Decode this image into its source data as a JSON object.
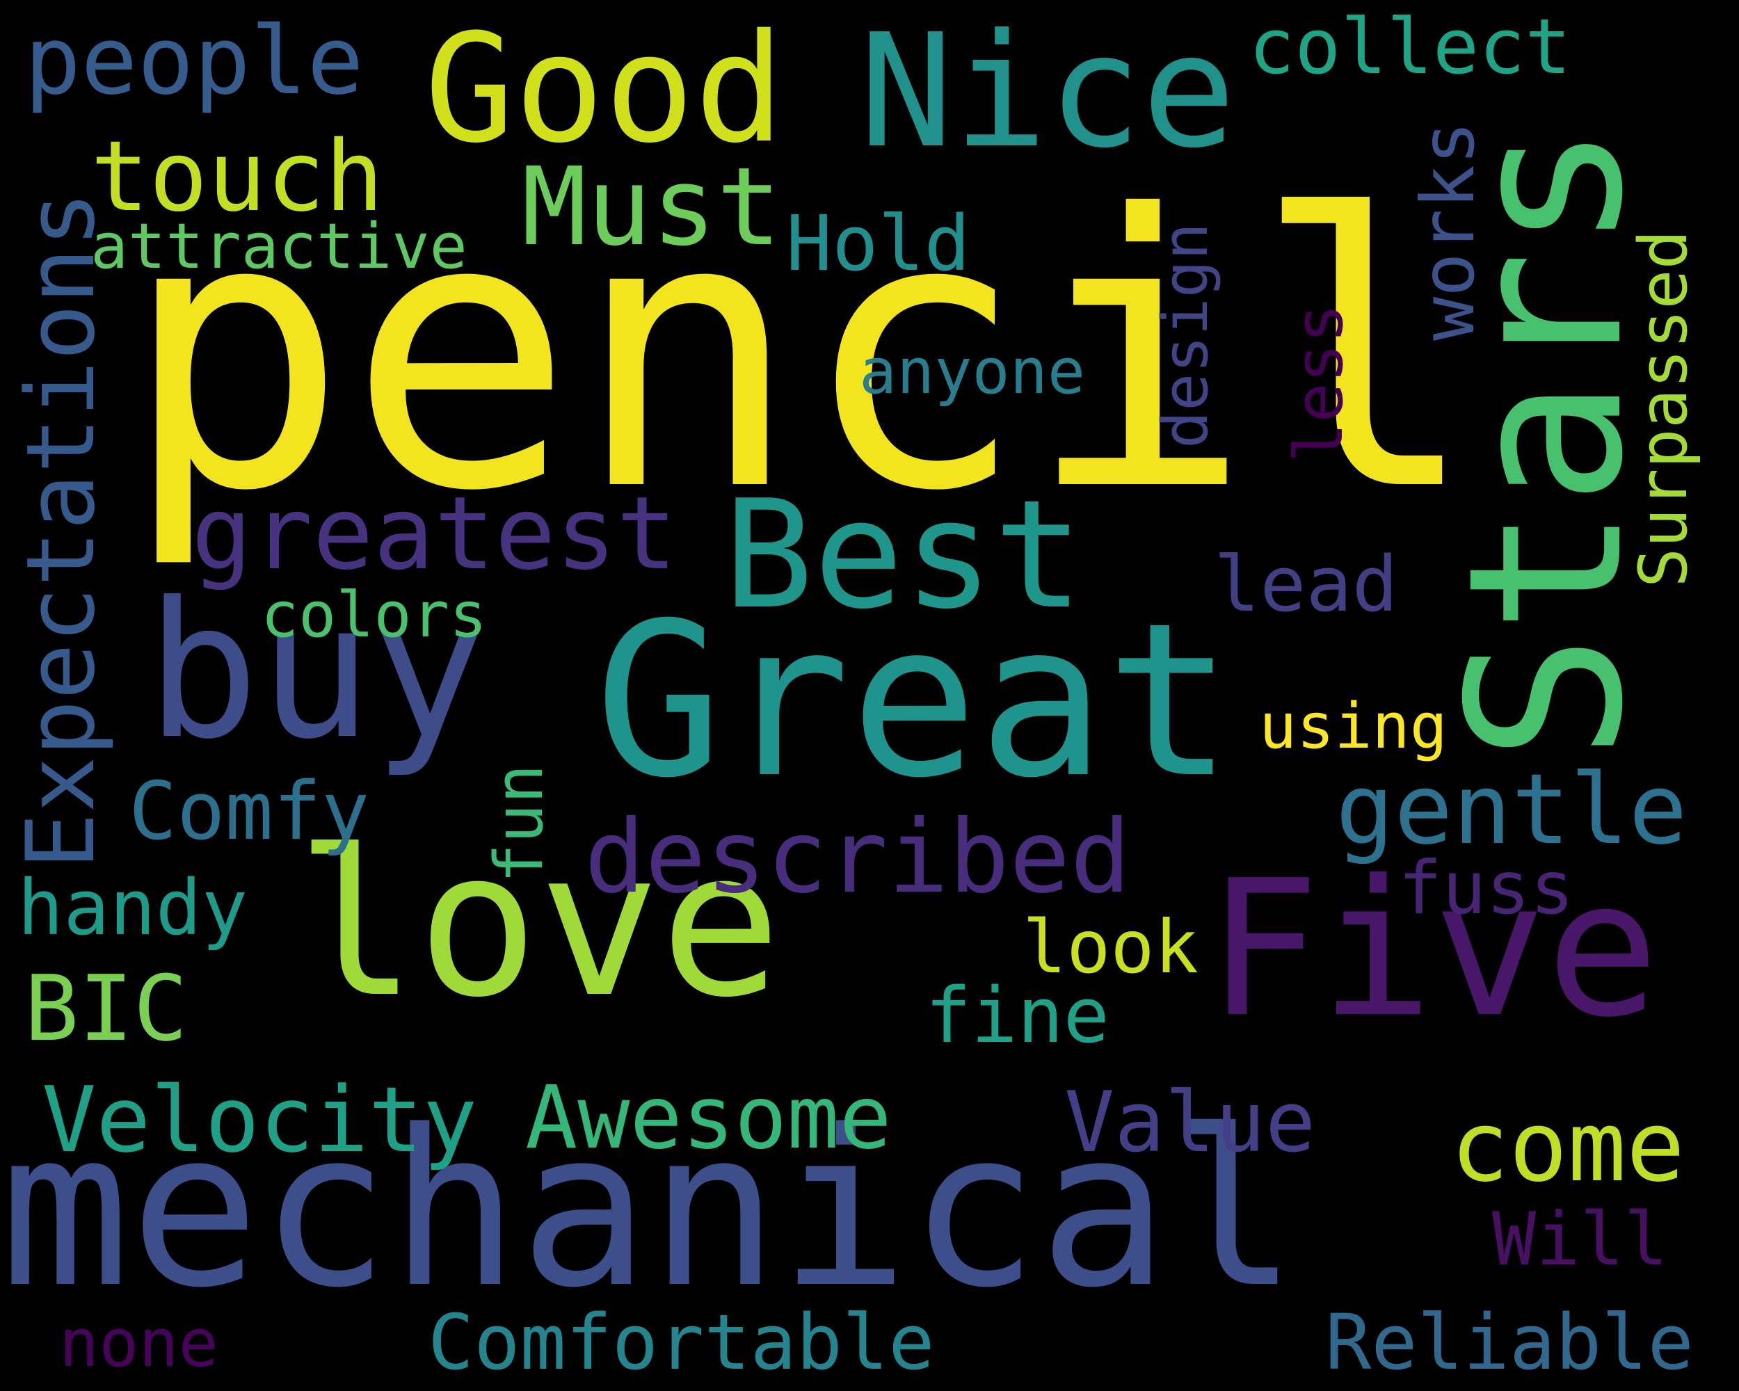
{
  "cloud": {
    "background": "#000000",
    "words": [
      {
        "text": "pencil",
        "color": "#f2e51d"
      },
      {
        "text": "mechanical",
        "color": "#3c4f8a"
      },
      {
        "text": "Great",
        "color": "#1f948c"
      },
      {
        "text": "Stars",
        "color": "#48c16e",
        "orientation": "vertical"
      },
      {
        "text": "love",
        "color": "#a0da39"
      },
      {
        "text": "Five",
        "color": "#481769"
      },
      {
        "text": "buy",
        "color": "#3e4c8a"
      },
      {
        "text": "Nice",
        "color": "#21918c"
      },
      {
        "text": "Good",
        "color": "#d0e11c"
      },
      {
        "text": "Best",
        "color": "#1f968b"
      },
      {
        "text": "Must",
        "color": "#6ccd5a"
      },
      {
        "text": "greatest",
        "color": "#46327e"
      },
      {
        "text": "described",
        "color": "#472d7b"
      },
      {
        "text": "gentle",
        "color": "#2c728e"
      },
      {
        "text": "come",
        "color": "#bddf26"
      },
      {
        "text": "touch",
        "color": "#c2df23"
      },
      {
        "text": "people",
        "color": "#365c8d"
      },
      {
        "text": "collect",
        "color": "#20a486"
      },
      {
        "text": "BIC",
        "color": "#7ad151"
      },
      {
        "text": "Velocity",
        "color": "#1fa188"
      },
      {
        "text": "Awesome",
        "color": "#35b779"
      },
      {
        "text": "Value",
        "color": "#433e85"
      },
      {
        "text": "Comfortable",
        "color": "#25858e"
      },
      {
        "text": "Reliable",
        "color": "#31688e"
      },
      {
        "text": "Comfy",
        "color": "#2d708e"
      },
      {
        "text": "Hold",
        "color": "#218f8d"
      },
      {
        "text": "lead",
        "color": "#423f85"
      },
      {
        "text": "handy",
        "color": "#1e9b8a"
      },
      {
        "text": "fine",
        "color": "#1fa088"
      },
      {
        "text": "look",
        "color": "#c8e020"
      },
      {
        "text": "fuss",
        "color": "#482475"
      },
      {
        "text": "Will",
        "color": "#471063"
      },
      {
        "text": "none",
        "color": "#450457"
      },
      {
        "text": "anyone",
        "color": "#287d8e"
      },
      {
        "text": "colors",
        "color": "#4ac16d"
      },
      {
        "text": "using",
        "color": "#fde725"
      },
      {
        "text": "attractive",
        "color": "#5ec962"
      },
      {
        "text": "Expectations",
        "color": "#375a8c",
        "orientation": "vertical"
      },
      {
        "text": "Surpassed",
        "color": "#a5db36",
        "orientation": "vertical"
      },
      {
        "text": "works",
        "color": "#3b528b",
        "orientation": "vertical"
      },
      {
        "text": "design",
        "color": "#414487",
        "orientation": "vertical"
      },
      {
        "text": "less",
        "color": "#440154",
        "orientation": "vertical"
      },
      {
        "text": "fun",
        "color": "#3aba76",
        "orientation": "vertical"
      }
    ]
  }
}
